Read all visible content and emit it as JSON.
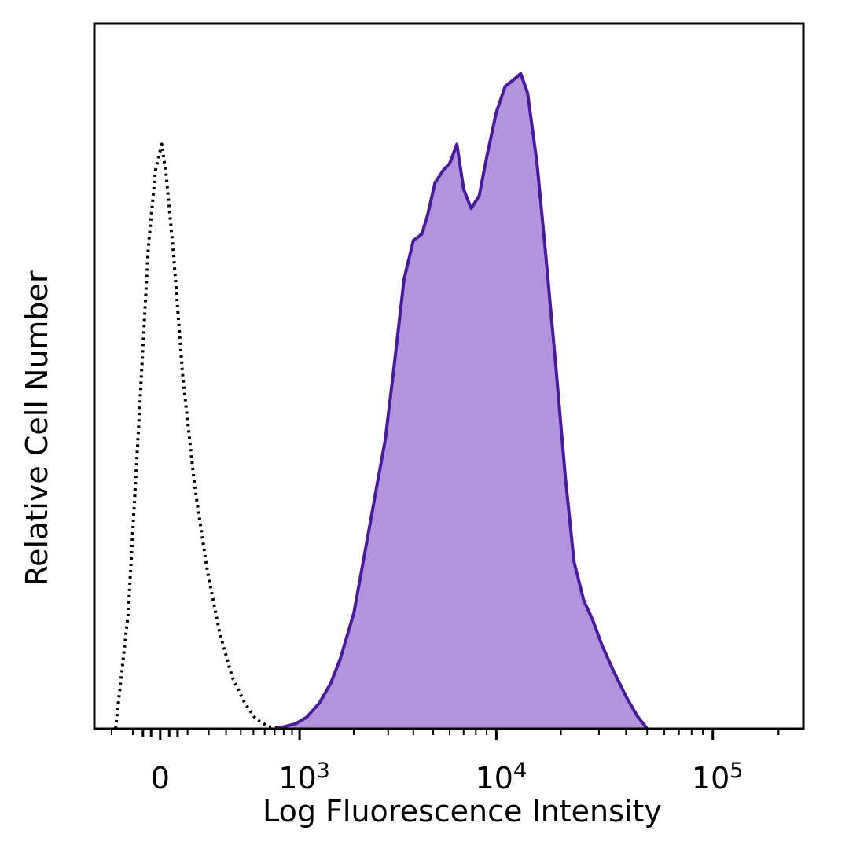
{
  "chart_data": {
    "type": "area",
    "xlabel": "Log Fluorescence Intensity",
    "ylabel": "Relative Cell Number",
    "x_scale": "biexponential",
    "x_ticks": [
      {
        "value": 0,
        "base": "0",
        "exp": ""
      },
      {
        "value": 1000,
        "base": "10",
        "exp": "3"
      },
      {
        "value": 10000,
        "base": "10",
        "exp": "4"
      },
      {
        "value": 100000,
        "base": "10",
        "exp": "5"
      }
    ],
    "xlim": [
      -300,
      260000
    ],
    "ylim": [
      0,
      100
    ],
    "grid": false,
    "legend": "none",
    "series": [
      {
        "style": "dotted",
        "fill": "none",
        "stroke": "#000000",
        "points": [
          [
            -180,
            0
          ],
          [
            -120,
            18
          ],
          [
            -75,
            48
          ],
          [
            -40,
            75
          ],
          [
            -15,
            87
          ],
          [
            -5,
            89
          ],
          [
            5,
            91
          ],
          [
            20,
            86
          ],
          [
            45,
            74
          ],
          [
            80,
            55
          ],
          [
            130,
            38
          ],
          [
            190,
            25
          ],
          [
            260,
            15
          ],
          [
            340,
            8
          ],
          [
            430,
            4
          ],
          [
            520,
            1.5
          ],
          [
            640,
            0.3
          ],
          [
            800,
            0
          ]
        ]
      },
      {
        "style": "solid",
        "fill": "#b294dd",
        "stroke": "#4a1a9e",
        "points": [
          [
            700,
            0
          ],
          [
            800,
            0.3
          ],
          [
            950,
            0.8
          ],
          [
            1100,
            1.8
          ],
          [
            1300,
            4
          ],
          [
            1500,
            7
          ],
          [
            1700,
            11
          ],
          [
            2000,
            18
          ],
          [
            2300,
            28
          ],
          [
            2600,
            37
          ],
          [
            2900,
            45
          ],
          [
            3200,
            56
          ],
          [
            3600,
            70
          ],
          [
            4000,
            76
          ],
          [
            4400,
            77
          ],
          [
            4700,
            80
          ],
          [
            5100,
            85
          ],
          [
            5600,
            87
          ],
          [
            6000,
            88
          ],
          [
            6500,
            91
          ],
          [
            7000,
            84
          ],
          [
            7600,
            81
          ],
          [
            8300,
            83
          ],
          [
            9000,
            89
          ],
          [
            10000,
            96
          ],
          [
            11000,
            100
          ],
          [
            12000,
            101
          ],
          [
            13000,
            102
          ],
          [
            14000,
            99
          ],
          [
            15500,
            88
          ],
          [
            17000,
            74
          ],
          [
            19000,
            56
          ],
          [
            21000,
            39
          ],
          [
            23000,
            26
          ],
          [
            25500,
            20
          ],
          [
            28000,
            17
          ],
          [
            31000,
            13
          ],
          [
            35000,
            9
          ],
          [
            40000,
            5
          ],
          [
            45000,
            2
          ],
          [
            50000,
            0
          ]
        ]
      }
    ]
  }
}
